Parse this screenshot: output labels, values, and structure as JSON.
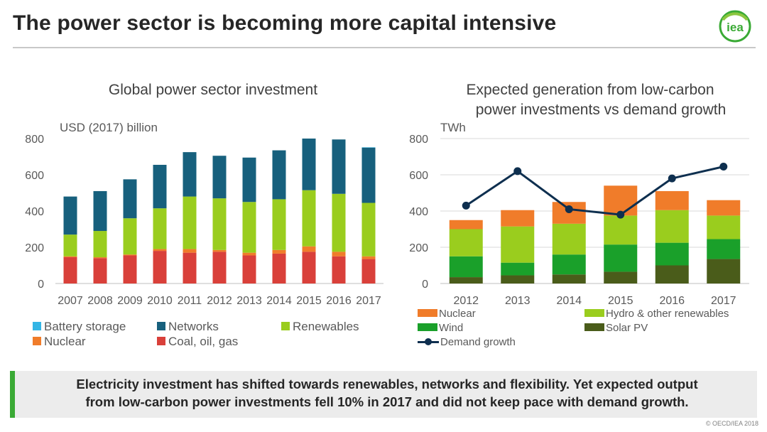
{
  "header": {
    "title": "The power sector is becoming more capital intensive",
    "logo_text": "iea"
  },
  "colors": {
    "battery": "#33b5e5",
    "networks": "#17607d",
    "renewables": "#9acd1e",
    "nuclear": "#f07c2a",
    "coal": "#d9403a",
    "hydro": "#9acd1e",
    "wind": "#1aa02a",
    "solar": "#4a5c1a",
    "demand": "#0e2f4f",
    "accent": "#3aaa35"
  },
  "chart_data": [
    {
      "type": "bar",
      "stacked": true,
      "title": "Global power sector investment",
      "ylabel": "USD (2017)  billion",
      "ylim": [
        0,
        800
      ],
      "yticks": [
        "0",
        "200",
        "400",
        "600",
        "800"
      ],
      "categories": [
        "2007",
        "2008",
        "2009",
        "2010",
        "2011",
        "2012",
        "2013",
        "2014",
        "2015",
        "2016",
        "2017"
      ],
      "series": [
        {
          "name": "Coal, oil, gas",
          "color_key": "coal",
          "values": [
            145,
            140,
            155,
            180,
            170,
            175,
            155,
            165,
            175,
            150,
            135
          ]
        },
        {
          "name": "Nuclear",
          "color_key": "nuclear",
          "values": [
            5,
            5,
            5,
            10,
            20,
            10,
            15,
            20,
            30,
            25,
            15
          ]
        },
        {
          "name": "Renewables",
          "color_key": "renewables",
          "values": [
            120,
            145,
            200,
            225,
            290,
            285,
            280,
            280,
            310,
            320,
            295
          ]
        },
        {
          "name": "Networks",
          "color_key": "networks",
          "values": [
            210,
            220,
            215,
            240,
            245,
            235,
            245,
            270,
            285,
            300,
            305
          ]
        },
        {
          "name": "Battery storage",
          "color_key": "battery",
          "values": [
            0,
            0,
            0,
            0,
            0,
            0,
            0,
            0,
            0,
            0,
            2
          ]
        }
      ],
      "legend": [
        {
          "label": "Battery storage",
          "color_key": "battery"
        },
        {
          "label": "Networks",
          "color_key": "networks"
        },
        {
          "label": "Renewables",
          "color_key": "renewables"
        },
        {
          "label": "Nuclear",
          "color_key": "nuclear"
        },
        {
          "label": "Coal, oil, gas",
          "color_key": "coal"
        }
      ]
    },
    {
      "type": "bar",
      "stacked": true,
      "title_line1": "Expected generation from low-carbon",
      "title_line2": "power investments vs demand growth",
      "ylabel": "TWh",
      "ylim": [
        0,
        800
      ],
      "yticks": [
        "0",
        "200",
        "400",
        "600",
        "800"
      ],
      "categories": [
        "2012",
        "2013",
        "2014",
        "2015",
        "2016",
        "2017"
      ],
      "series": [
        {
          "name": "Solar PV",
          "color_key": "solar",
          "values": [
            35,
            45,
            50,
            65,
            100,
            135
          ]
        },
        {
          "name": "Wind",
          "color_key": "wind",
          "values": [
            115,
            70,
            110,
            150,
            125,
            110
          ]
        },
        {
          "name": "Hydro & other renewables",
          "color_key": "hydro",
          "values": [
            150,
            200,
            170,
            160,
            180,
            130
          ]
        },
        {
          "name": "Nuclear",
          "color_key": "nuclear",
          "values": [
            50,
            90,
            120,
            165,
            105,
            85
          ]
        }
      ],
      "line": {
        "name": "Demand growth",
        "color_key": "demand",
        "values": [
          430,
          620,
          410,
          380,
          580,
          645
        ]
      },
      "legend": [
        {
          "label": "Nuclear",
          "color_key": "nuclear",
          "kind": "bar"
        },
        {
          "label": "Hydro & other renewables",
          "color_key": "hydro",
          "kind": "bar"
        },
        {
          "label": "Wind",
          "color_key": "wind",
          "kind": "bar"
        },
        {
          "label": "Solar PV",
          "color_key": "solar",
          "kind": "bar"
        },
        {
          "label": "Demand growth",
          "color_key": "demand",
          "kind": "line"
        }
      ]
    }
  ],
  "footer": {
    "line1": "Electricity investment has shifted towards renewables, networks and flexibility. Yet expected output",
    "line2": "from low-carbon power investments fell 10% in 2017 and did not keep pace with demand growth.",
    "copyright": "© OECD/IEA 2018"
  }
}
